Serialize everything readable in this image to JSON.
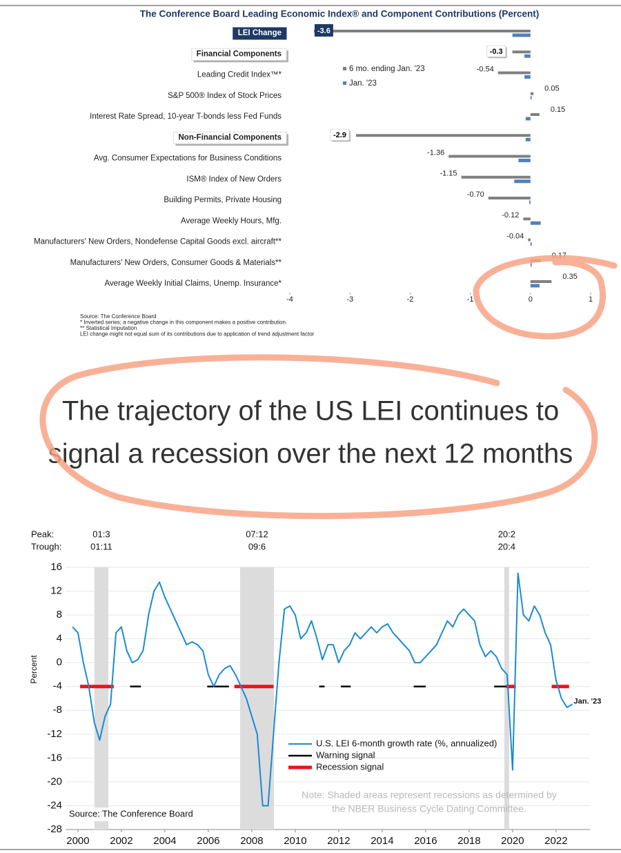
{
  "chart_data": [
    {
      "type": "hbar",
      "title": "The Conference Board Leading Economic Index® and Component Contributions (Percent)",
      "categories": [
        "LEI Change",
        "Financial Components",
        "Leading Credit Index™*",
        "S&P 500® Index of Stock Prices",
        "Interest Rate Spread, 10-year T-bonds less Fed Funds",
        "Non-Financial Components",
        "Avg. Consumer Expectations for Business Conditions",
        "ISM® Index of New Orders",
        "Building Permits, Private Housing",
        "Average Weekly Hours, Mfg.",
        "Manufacturers' New Orders, Nondefense Capital Goods excl. aircraft**",
        "Manufacturers' New Orders, Consumer Goods & Materials**",
        "Average Weekly Initial Claims, Unemp. Insurance*"
      ],
      "series": [
        {
          "name": "6 mo. ending Jan. '23",
          "color": "#7f7f7f",
          "values": [
            -3.6,
            -0.3,
            -0.54,
            0.05,
            0.15,
            -2.9,
            -1.36,
            -1.15,
            -0.7,
            -0.12,
            -0.04,
            0.17,
            0.35
          ],
          "value_labels": [
            "-3.6",
            "-0.3",
            "-0.54",
            "0.05",
            "0.15",
            "-2.9",
            "-1.36",
            "-1.15",
            "-0.70",
            "-0.12",
            "-0.04",
            "0.17",
            "0.35"
          ]
        },
        {
          "name": "Jan. '23",
          "color": "#4f81bd",
          "values": [
            -0.3,
            -0.1,
            -0.1,
            0.02,
            -0.08,
            -0.08,
            -0.2,
            -0.27,
            -0.02,
            0.17,
            0.02,
            0.02,
            0.15
          ]
        }
      ],
      "xlim": [
        -4,
        1
      ],
      "xticks": [
        -4,
        -3,
        -2,
        -1,
        0,
        1
      ],
      "notes": [
        "Source: The Conference Board",
        "*  Inverted series; a negative change in this component makes a positive contribution.",
        "**  Statistical Imputation",
        "LEI change might not equal sum of   its contributions due to application of trend adjustment factor"
      ]
    },
    {
      "type": "line",
      "ylabel": "Percent",
      "x": [
        1999.75,
        2000,
        2000.25,
        2000.5,
        2000.75,
        2001,
        2001.25,
        2001.5,
        2001.75,
        2002,
        2002.25,
        2002.5,
        2002.75,
        2003,
        2003.25,
        2003.5,
        2003.75,
        2004,
        2004.25,
        2004.5,
        2004.75,
        2005,
        2005.25,
        2005.5,
        2005.75,
        2006,
        2006.25,
        2006.5,
        2006.75,
        2007,
        2007.25,
        2007.5,
        2007.75,
        2008,
        2008.25,
        2008.5,
        2008.75,
        2009,
        2009.25,
        2009.5,
        2009.75,
        2010,
        2010.25,
        2010.5,
        2010.75,
        2011,
        2011.25,
        2011.5,
        2011.75,
        2012,
        2012.25,
        2012.5,
        2012.75,
        2013,
        2013.25,
        2013.5,
        2013.75,
        2014,
        2014.25,
        2014.5,
        2014.75,
        2015,
        2015.25,
        2015.5,
        2015.75,
        2016,
        2016.25,
        2016.5,
        2016.75,
        2017,
        2017.25,
        2017.5,
        2017.75,
        2018,
        2018.25,
        2018.5,
        2018.75,
        2019,
        2019.25,
        2019.5,
        2019.75,
        2020,
        2020.25,
        2020.5,
        2020.75,
        2021,
        2021.25,
        2021.5,
        2021.75,
        2022,
        2022.25,
        2022.5,
        2022.75
      ],
      "series": [
        {
          "name": "U.S. LEI 6-month growth rate (%, annualized)",
          "color": "#1a8ad4",
          "values": [
            6,
            5,
            0,
            -4,
            -10,
            -13,
            -9,
            -7,
            5,
            6,
            2,
            0,
            0.5,
            2,
            8,
            12,
            13.5,
            11,
            9,
            7,
            5,
            3,
            3.5,
            3,
            2,
            -2,
            -4,
            -2,
            -1,
            -0.5,
            -2,
            -4,
            -6,
            -9,
            -12,
            -24,
            -24,
            -12,
            0,
            9,
            9.5,
            8,
            4,
            5,
            7,
            4,
            0.5,
            3,
            3,
            0,
            2,
            3,
            5,
            4,
            5,
            6,
            5,
            6,
            6.5,
            5,
            4,
            3,
            2,
            0,
            0,
            1,
            2,
            3,
            5,
            7,
            6,
            8,
            9,
            8,
            7,
            3,
            1,
            2,
            1,
            -1,
            -2,
            -18,
            15,
            8,
            7,
            9.5,
            8,
            5,
            3,
            -3,
            -6,
            -7.5,
            -7
          ]
        }
      ],
      "signals": [
        {
          "name": "Warning signal",
          "color": "#000000",
          "level": -4,
          "spans": [
            [
              2002.4,
              2002.9
            ],
            [
              2005.95,
              2006.95
            ],
            [
              2011.1,
              2011.35
            ],
            [
              2012.1,
              2012.55
            ],
            [
              2015.45,
              2016.0
            ],
            [
              2019.15,
              2019.7
            ]
          ]
        },
        {
          "name": "Recession signal",
          "color": "#e8141b",
          "level": -4,
          "spans": [
            [
              2000.1,
              2001.65
            ],
            [
              2007.2,
              2009.0
            ],
            [
              2019.7,
              2020.15
            ],
            [
              2021.8,
              2022.6
            ]
          ]
        }
      ],
      "peak_label": "Peak:",
      "trough_label": "Trough:",
      "recessions": [
        {
          "peak": "01:3",
          "trough": "01:11",
          "span": [
            2000.76,
            2001.4
          ]
        },
        {
          "peak": "07:12",
          "trough": "09:6",
          "span": [
            2007.46,
            2009.02
          ]
        },
        {
          "peak": "20:2",
          "trough": "20:4",
          "span": [
            2019.62,
            2019.84
          ]
        }
      ],
      "end_label": "Jan. '23",
      "note": [
        "Note: Shaded areas represent recessions as determined by",
        "the NBER Business Cycle Dating Committee."
      ],
      "source": "Source: The Conference Board",
      "xlim": [
        1999.43,
        2023.56
      ],
      "xticks": [
        2000,
        2002,
        2004,
        2006,
        2008,
        2010,
        2012,
        2014,
        2016,
        2018,
        2020,
        2022
      ],
      "ylim": [
        -28,
        16
      ],
      "yticks": [
        -28,
        -24,
        -20,
        -16,
        -12,
        -8,
        -4,
        0,
        4,
        8,
        12,
        16
      ]
    }
  ],
  "headline": [
    "The trajectory of the US LEI continues to",
    "signal a recession over the next 12 months"
  ]
}
